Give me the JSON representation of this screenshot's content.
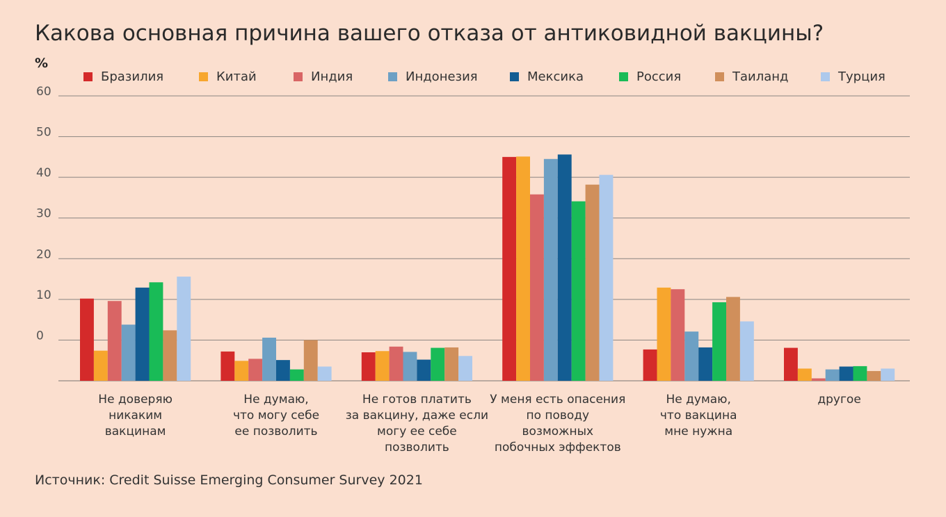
{
  "title": "Какова основная причина вашего отказа от антиковидной вакцины?",
  "unit": "%",
  "source": "Источник: Credit Suisse Emerging Consumer Survey 2021",
  "chart_data": {
    "type": "bar",
    "title": "Какова основная причина вашего отказа от антиковидной вакцины?",
    "ylabel": "%",
    "xlabel": "",
    "ylim": [
      -10,
      60
    ],
    "yticks": [
      60,
      50,
      40,
      30,
      20,
      10,
      0
    ],
    "grid": true,
    "legend_position": "top",
    "categories": [
      "Не доверяю никаким вакцинам",
      "Не думаю, что могу себе ее позволить",
      "Не готов платить за вакцину, даже если могу ее себе позволить",
      "У меня есть опасения по поводу возможных побочных эффектов",
      "Не думаю, что вакцина мне нужна",
      "другое"
    ],
    "category_lines": [
      [
        "Не доверяю",
        "никаким",
        "вакцинам"
      ],
      [
        "Не думаю,",
        "что могу себе",
        "ее позволить"
      ],
      [
        "Не готов платить",
        "за вакцину, даже если",
        "могу ее себе",
        "позволить"
      ],
      [
        "У меня есть опасения",
        "по поводу",
        "возможных",
        "побочных эффектов"
      ],
      [
        "Не думаю,",
        "что вакцина",
        "мне нужна"
      ],
      [
        "другое"
      ]
    ],
    "series": [
      {
        "name": "Бразилия",
        "color": "#d42a2a",
        "values": [
          10.2,
          -2.8,
          -3.0,
          45.0,
          -2.3,
          -1.9
        ]
      },
      {
        "name": "Китай",
        "color": "#f7a62d",
        "values": [
          -2.6,
          -5.1,
          -2.7,
          45.1,
          12.9,
          -7.0
        ]
      },
      {
        "name": "Индия",
        "color": "#d96565",
        "values": [
          9.6,
          -4.6,
          -1.6,
          35.8,
          12.5,
          -9.4
        ]
      },
      {
        "name": "Индонезия",
        "color": "#6da0c4",
        "values": [
          3.8,
          0.6,
          -2.9,
          44.5,
          2.1,
          -7.2
        ]
      },
      {
        "name": "Мексика",
        "color": "#135d93",
        "values": [
          12.9,
          -4.9,
          -4.8,
          45.6,
          -1.8,
          -6.5
        ]
      },
      {
        "name": "Россия",
        "color": "#19bb57",
        "values": [
          14.2,
          -7.2,
          -1.9,
          34.1,
          9.3,
          -6.4
        ]
      },
      {
        "name": "Таиланд",
        "color": "#d08f5b",
        "values": [
          2.4,
          0.0,
          -1.8,
          38.2,
          10.6,
          -7.6
        ]
      },
      {
        "name": "Турция",
        "color": "#adc9ec",
        "values": [
          15.6,
          -6.5,
          -3.9,
          40.6,
          4.6,
          -7.0
        ]
      }
    ]
  }
}
